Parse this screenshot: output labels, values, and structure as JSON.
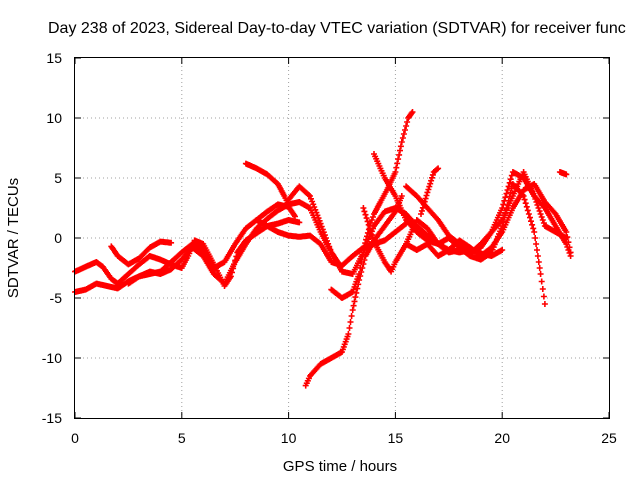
{
  "chart_data": {
    "type": "scatter",
    "title": "Day 238 of 2023, Sidereal Day-to-day VTEC variation (SDTVAR) for receiver func",
    "xlabel": "GPS time / hours",
    "ylabel": "SDTVAR / TECUs",
    "xlim": [
      0,
      25
    ],
    "ylim": [
      -15,
      15
    ],
    "xticks": [
      0,
      5,
      10,
      15,
      20,
      25
    ],
    "yticks": [
      -15,
      -10,
      -5,
      0,
      5,
      10,
      15
    ],
    "xtick_labels": [
      "0",
      "5",
      "10",
      "15",
      "20",
      "25"
    ],
    "ytick_labels": [
      "-15",
      "-10",
      "-5",
      "0",
      "5",
      "10",
      "15"
    ],
    "grid": true,
    "marker": "+",
    "color": "#ff0000",
    "series": [
      {
        "name": "track-1",
        "points": [
          [
            0,
            -4.5
          ],
          [
            0.5,
            -4.3
          ],
          [
            1,
            -3.8
          ],
          [
            1.5,
            -4.0
          ],
          [
            2,
            -4.2
          ],
          [
            2.5,
            -3.6
          ],
          [
            3,
            -3.2
          ],
          [
            3.5,
            -3.0
          ],
          [
            4,
            -2.8
          ],
          [
            4.5,
            -2.0
          ],
          [
            5,
            -1.2
          ],
          [
            5.5,
            -0.5
          ],
          [
            6,
            -1.0
          ],
          [
            6.5,
            -2.5
          ],
          [
            7,
            -2.0
          ],
          [
            7.5,
            -0.5
          ],
          [
            8,
            0.8
          ],
          [
            8.5,
            1.5
          ],
          [
            9,
            2.2
          ],
          [
            9.5,
            2.8
          ],
          [
            10,
            2.6
          ],
          [
            10.3,
            1.8
          ]
        ]
      },
      {
        "name": "track-2",
        "points": [
          [
            0,
            -2.8
          ],
          [
            0.5,
            -2.4
          ],
          [
            1,
            -2.0
          ],
          [
            1.3,
            -2.4
          ],
          [
            1.7,
            -3.4
          ],
          [
            2,
            -3.8
          ],
          [
            2.5,
            -3.0
          ],
          [
            3,
            -2.2
          ],
          [
            3.5,
            -1.5
          ],
          [
            4,
            -1.8
          ],
          [
            4.5,
            -2.2
          ],
          [
            5,
            -2.5
          ],
          [
            5.3,
            -1.5
          ],
          [
            5.6,
            -0.2
          ],
          [
            6,
            -0.5
          ],
          [
            6.5,
            -2.2
          ],
          [
            7,
            -4.0
          ],
          [
            7.3,
            -3.2
          ],
          [
            7.6,
            -1.2
          ],
          [
            8,
            -0.2
          ],
          [
            8.5,
            0.4
          ],
          [
            9,
            1.0
          ],
          [
            9.5,
            1.2
          ],
          [
            10,
            1.5
          ],
          [
            10.5,
            1.3
          ]
        ]
      },
      {
        "name": "track-3",
        "points": [
          [
            1.7,
            -0.7
          ],
          [
            2,
            -1.5
          ],
          [
            2.5,
            -2.2
          ],
          [
            3,
            -1.7
          ],
          [
            3.5,
            -0.8
          ],
          [
            4,
            -0.3
          ],
          [
            4.5,
            -0.4
          ]
        ]
      },
      {
        "name": "track-4",
        "points": [
          [
            2.5,
            -3.8
          ],
          [
            3,
            -3.2
          ],
          [
            3.5,
            -2.8
          ],
          [
            4,
            -3.0
          ],
          [
            4.5,
            -2.6
          ],
          [
            5,
            -1.8
          ],
          [
            5.5,
            -0.8
          ],
          [
            6,
            -1.5
          ],
          [
            6.5,
            -3.0
          ],
          [
            7,
            -3.8
          ],
          [
            7.5,
            -2.0
          ],
          [
            8,
            -0.5
          ],
          [
            8.5,
            0.8
          ],
          [
            9,
            1.6
          ],
          [
            9.5,
            2.3
          ],
          [
            10,
            2.8
          ],
          [
            10.5,
            3.0
          ],
          [
            11,
            2.5
          ],
          [
            11.5,
            0.5
          ],
          [
            12,
            -1.2
          ],
          [
            12.3,
            -2.0
          ]
        ]
      },
      {
        "name": "track-5",
        "points": [
          [
            8,
            6.2
          ],
          [
            8.5,
            5.8
          ],
          [
            9,
            5.3
          ],
          [
            9.5,
            4.5
          ],
          [
            9.8,
            3.5
          ],
          [
            10,
            2.8
          ]
        ]
      },
      {
        "name": "track-6",
        "points": [
          [
            8.5,
            1.5
          ],
          [
            9,
            1.0
          ],
          [
            9.5,
            0.5
          ],
          [
            10,
            0.2
          ],
          [
            10.5,
            0.1
          ],
          [
            11,
            0.2
          ],
          [
            11.5,
            -0.5
          ],
          [
            12,
            -2.0
          ],
          [
            12.5,
            -2.3
          ],
          [
            13,
            -1.5
          ],
          [
            13.5,
            -0.8
          ],
          [
            14,
            -0.5
          ],
          [
            14.5,
            -0.2
          ],
          [
            15,
            0.5
          ],
          [
            15.5,
            1.2
          ]
        ]
      },
      {
        "name": "track-7",
        "points": [
          [
            10,
            3.2
          ],
          [
            10.5,
            4.3
          ],
          [
            11,
            3.5
          ],
          [
            11.5,
            1.2
          ],
          [
            12,
            -1.2
          ],
          [
            12.5,
            -2.8
          ],
          [
            13,
            -3.0
          ],
          [
            13.5,
            -1.2
          ],
          [
            14,
            1.0
          ],
          [
            14.5,
            2.2
          ],
          [
            15,
            2.5
          ],
          [
            15.5,
            2.0
          ],
          [
            16,
            1.0
          ],
          [
            16.5,
            0.2
          ],
          [
            17,
            -0.5
          ],
          [
            17.5,
            -1.0
          ],
          [
            18,
            -1.2
          ],
          [
            18.5,
            -1.0
          ],
          [
            19,
            -1.3
          ],
          [
            19.5,
            -1.5
          ],
          [
            20,
            -1.0
          ]
        ]
      },
      {
        "name": "track-8",
        "points": [
          [
            10.8,
            -12.3
          ],
          [
            11,
            -11.5
          ],
          [
            11.5,
            -10.5
          ],
          [
            12,
            -10.0
          ],
          [
            12.5,
            -9.5
          ],
          [
            12.8,
            -8.0
          ],
          [
            13,
            -6.0
          ],
          [
            13.3,
            -3.5
          ],
          [
            13.6,
            -1.5
          ],
          [
            14,
            -0.2
          ],
          [
            14.5,
            1.0
          ],
          [
            15,
            2.2
          ],
          [
            15.3,
            3.5
          ]
        ]
      },
      {
        "name": "track-9",
        "points": [
          [
            12,
            -4.3
          ],
          [
            12.5,
            -5.0
          ],
          [
            13,
            -4.5
          ],
          [
            13.3,
            -3.0
          ],
          [
            13.5,
            -1.0
          ],
          [
            13.8,
            1.0
          ],
          [
            14,
            2.0
          ],
          [
            14.3,
            3.0
          ],
          [
            14.6,
            4.0
          ],
          [
            15,
            5.5
          ],
          [
            15.3,
            8.0
          ],
          [
            15.6,
            10.0
          ],
          [
            15.8,
            10.5
          ]
        ]
      },
      {
        "name": "track-10",
        "points": [
          [
            13.5,
            2.5
          ],
          [
            14,
            -0.3
          ],
          [
            14.5,
            -2.0
          ],
          [
            14.8,
            -2.8
          ],
          [
            15,
            -2.0
          ],
          [
            15.5,
            -0.5
          ],
          [
            16,
            1.5
          ],
          [
            16.5,
            0.8
          ],
          [
            17,
            -0.5
          ],
          [
            17.5,
            -1.2
          ],
          [
            18,
            -1.0
          ],
          [
            18.5,
            -1.3
          ],
          [
            19,
            -0.5
          ],
          [
            19.5,
            0.5
          ],
          [
            20,
            1.5
          ],
          [
            20.5,
            3.5
          ],
          [
            21,
            5.5
          ],
          [
            21.5,
            3.5
          ],
          [
            22,
            1.0
          ],
          [
            22.5,
            0.5
          ],
          [
            23,
            0.0
          ]
        ]
      },
      {
        "name": "track-11",
        "points": [
          [
            14,
            7.0
          ],
          [
            14.5,
            5.0
          ],
          [
            15,
            3.5
          ],
          [
            15.5,
            1.5
          ],
          [
            16,
            0.5
          ],
          [
            16.5,
            -0.2
          ],
          [
            17,
            -0.5
          ],
          [
            17.5,
            0.0
          ],
          [
            18,
            -0.8
          ],
          [
            18.5,
            -1.5
          ],
          [
            19,
            -1.8
          ],
          [
            19.5,
            -1.2
          ],
          [
            20,
            1.0
          ],
          [
            20.5,
            4.5
          ],
          [
            21,
            3.5
          ],
          [
            21.5,
            0.5
          ],
          [
            21.8,
            -3.0
          ],
          [
            22,
            -5.5
          ]
        ]
      },
      {
        "name": "track-12",
        "points": [
          [
            15.5,
            4.3
          ],
          [
            16,
            3.5
          ],
          [
            16.5,
            2.5
          ],
          [
            17,
            1.5
          ],
          [
            17.5,
            0.2
          ],
          [
            18,
            -0.5
          ],
          [
            18.5,
            -1.2
          ],
          [
            19,
            -0.8
          ],
          [
            19.5,
            0.5
          ],
          [
            20,
            2.5
          ],
          [
            20.5,
            5.5
          ],
          [
            21,
            5.0
          ],
          [
            21.5,
            3.5
          ],
          [
            22,
            2.5
          ],
          [
            22.5,
            1.0
          ],
          [
            23,
            -0.5
          ],
          [
            23.2,
            -1.5
          ]
        ]
      },
      {
        "name": "track-13",
        "points": [
          [
            16.2,
            2.0
          ],
          [
            16.5,
            3.8
          ],
          [
            16.8,
            5.5
          ],
          [
            17,
            5.8
          ]
        ]
      },
      {
        "name": "track-14",
        "points": [
          [
            15.5,
            -0.5
          ],
          [
            16,
            -1.0
          ],
          [
            16.5,
            -0.5
          ],
          [
            17,
            -1.5
          ],
          [
            17.5,
            -1.0
          ],
          [
            18,
            -0.2
          ],
          [
            18.5,
            -0.8
          ],
          [
            19,
            -1.5
          ],
          [
            19.5,
            -0.8
          ],
          [
            20,
            0.5
          ],
          [
            20.5,
            2.5
          ],
          [
            21,
            4.0
          ],
          [
            21.5,
            4.5
          ],
          [
            22,
            3.0
          ],
          [
            22.5,
            2.0
          ],
          [
            23,
            0.5
          ],
          [
            23.2,
            -1.2
          ]
        ]
      },
      {
        "name": "track-15",
        "points": [
          [
            22.7,
            5.5
          ],
          [
            23,
            5.3
          ]
        ]
      }
    ]
  }
}
